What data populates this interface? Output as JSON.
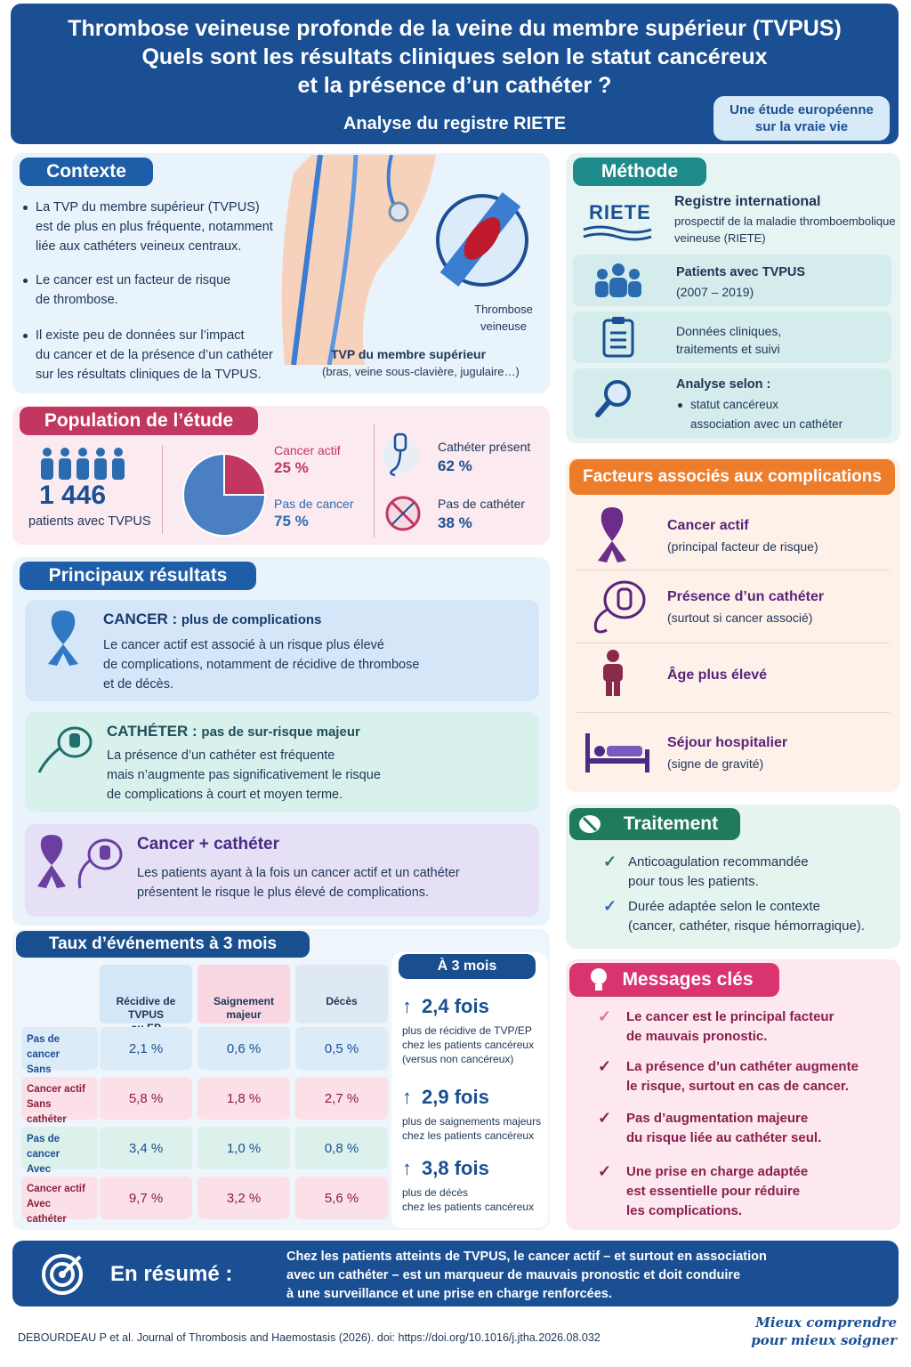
{
  "header": {
    "title_lines": [
      "Thrombose veineuse profonde de la veine du membre supérieur (TVPUS)",
      "Quels sont les résultats cliniques selon le statut cancéreux",
      "et la présence d’un cathéter ?"
    ],
    "subtitle": "Analyse du registre RIETE",
    "badge": [
      "Une étude européenne",
      "sur la vraie vie"
    ]
  },
  "context": {
    "heading": "Contexte",
    "bullets": [
      [
        "La TVP du membre supérieur (TVPUS)",
        "est de plus en plus fréquente, notamment",
        "liée aux cathéters veineux centraux."
      ],
      [
        "Le cancer est un facteur de risque",
        "de thrombose."
      ],
      [
        "Il existe peu de données sur l’impact",
        "du cancer et de la présence d’un cathéter",
        "sur les résultats cliniques de la TVPUS."
      ]
    ],
    "zoom_label": [
      "Thrombose",
      "veineuse"
    ],
    "figure_caption": "TVP du membre supérieur",
    "figure_note": "(bras, veine sous-clavière, jugulaire…)"
  },
  "method": {
    "heading": "Méthode",
    "logo": "RIETE",
    "items": [
      {
        "title": "Registre international",
        "lines": [
          "prospectif de la maladie thromboembolique",
          "veineuse (RIETE)"
        ]
      },
      {
        "title": "Patients avec TVPUS",
        "lines": [
          "(2007 – 2019)"
        ]
      },
      {
        "title": "Données cliniques,",
        "lines": [
          "traitements et suivi"
        ]
      },
      {
        "title": "Analyse selon :",
        "lines": [
          "statut cancéreux",
          "association avec un cathéter"
        ]
      }
    ]
  },
  "population": {
    "heading": "Population de l’étude",
    "count": "1 446",
    "count_label": "patients avec TVPUS",
    "cancer": {
      "label": "Cancer actif",
      "value": 25,
      "value_label": "25 %"
    },
    "no_cancer": {
      "label": "Pas de cancer",
      "value": 75,
      "value_label": "75 %"
    },
    "catheter": {
      "label": "Cathéter présent",
      "value_label": "62 %"
    },
    "no_catheter": {
      "label": "Pas de cathéter",
      "value_label": "38 %"
    }
  },
  "results": {
    "heading": "Principaux résultats",
    "cards": [
      {
        "title": "CANCER :",
        "subtitle": "plus de complications",
        "lines": [
          "Le cancer actif est associé à un risque plus élevé",
          "de complications, notamment de récidive de thrombose",
          "et de décès."
        ]
      },
      {
        "title": "CATHÉTER :",
        "subtitle": "pas de sur-risque majeur",
        "lines": [
          "La présence d’un cathéter est fréquente",
          "mais n’augmente pas significativement le risque",
          "de complications à court et moyen terme."
        ]
      },
      {
        "title": "Cancer + cathéter",
        "lines": [
          "Les patients ayant à la fois un cancer actif et un cathéter",
          "présentent le risque le plus élevé de complications."
        ]
      }
    ]
  },
  "factors": {
    "heading": "Facteurs associés aux complications",
    "items": [
      {
        "title": "Cancer actif",
        "note": "(principal facteur de risque)"
      },
      {
        "title": "Présence d’un cathéter",
        "note": "(surtout si cancer associé)"
      },
      {
        "title": "Âge plus élevé"
      },
      {
        "title": "Séjour hospitalier",
        "note": "(signe de gravité)"
      }
    ]
  },
  "treatment": {
    "heading": "Traitement",
    "items": [
      [
        "Anticoagulation recommandée",
        "pour tous les patients."
      ],
      [
        "Durée adaptée selon le contexte",
        "(cancer, cathéter, risque hémorragique)."
      ]
    ]
  },
  "events": {
    "heading": "Taux d’événements à 3 mois",
    "columns": [
      [
        "Récidive de TVPUS",
        "ou EP"
      ],
      [
        "Saignement majeur"
      ],
      [
        "Décès"
      ]
    ],
    "rows": [
      {
        "label": [
          "Pas de cancer",
          "Sans cathéter"
        ],
        "cells": [
          "2,1 %",
          "0,6 %",
          "0,5 %"
        ]
      },
      {
        "label": [
          "Cancer actif",
          "Sans cathéter"
        ],
        "cells": [
          "5,8 %",
          "1,8 %",
          "2,7 %"
        ]
      },
      {
        "label": [
          "Pas de cancer",
          "Avec cathéter"
        ],
        "cells": [
          "3,4 %",
          "1,0 %",
          "0,8 %"
        ]
      },
      {
        "label": [
          "Cancer actif",
          "Avec cathéter"
        ],
        "cells": [
          "9,7 %",
          "3,2 %",
          "5,6 %"
        ]
      }
    ],
    "summary": {
      "heading": "À 3 mois",
      "items": [
        {
          "value": "2,4 fois",
          "lines": [
            "plus de récidive de TVP/EP",
            "chez les patients cancéreux",
            "(versus non cancéreux)"
          ]
        },
        {
          "value": "2,9 fois",
          "lines": [
            "plus de saignements majeurs",
            "chez les patients cancéreux"
          ]
        },
        {
          "value": "3,8 fois",
          "lines": [
            "plus de décès",
            "chez les patients cancéreux"
          ]
        }
      ]
    }
  },
  "key_messages": {
    "heading": "Messages clés",
    "items": [
      [
        "Le cancer est le principal facteur",
        "de mauvais pronostic."
      ],
      [
        "La présence d’un cathéter augmente",
        "le risque, surtout en cas de cancer."
      ],
      [
        "Pas d’augmentation majeure",
        "du risque liée au cathéter seul."
      ],
      [
        "Une prise en charge adaptée",
        "est essentielle pour réduire",
        "les complications."
      ]
    ]
  },
  "summary": {
    "heading": "En résumé :",
    "lines": [
      "Chez les patients atteints de TVPUS, le cancer actif – et surtout en association",
      "avec un cathéter – est un marqueur de mauvais pronostic et doit conduire",
      "à une surveillance et une prise en charge renforcées."
    ]
  },
  "footer": {
    "citation": "DEBOURDEAU P et al. Journal of Thrombosis and Haemostasis (2026). doi: https://doi.org/10.1016/j.jtha.2026.08.032",
    "slogan": [
      "Mieux comprendre",
      "pour mieux soigner"
    ]
  }
}
